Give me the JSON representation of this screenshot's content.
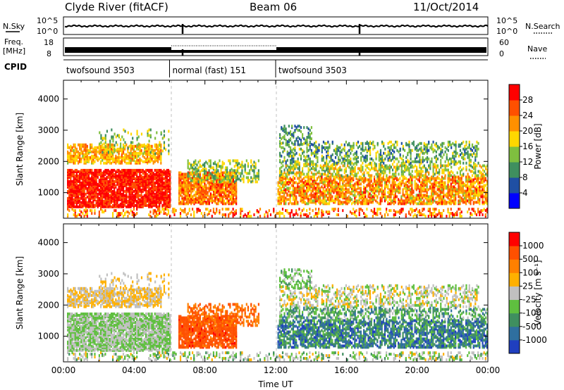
{
  "header": {
    "station": "Clyde River (fitACF)",
    "beam": "Beam 06",
    "date": "11/Oct/2014"
  },
  "noise_panel": {
    "left_label": "N.Sky",
    "right_label": "N.Search",
    "left_ticks": [
      "10^5",
      "10^0"
    ],
    "right_ticks": [
      "10^5",
      "10^0"
    ]
  },
  "freq_panel": {
    "left_label_line1": "Freq.",
    "left_label_line2": "[MHz]",
    "right_label": "Nave",
    "left_ticks": [
      "18",
      "8"
    ],
    "right_ticks": [
      "60",
      "0"
    ]
  },
  "cpid_panel": {
    "label": "CPID",
    "segments": [
      {
        "name": "twofsound 3503",
        "start": 0,
        "end": 6
      },
      {
        "name": "normal (fast) 151",
        "start": 6,
        "end": 12
      },
      {
        "name": "twofsound 3503",
        "start": 12,
        "end": 24
      }
    ]
  },
  "chart_data": [
    {
      "type": "heatmap",
      "parameter": "Power",
      "ylabel": "Slant Range [km]",
      "ylim": [
        180,
        4600
      ],
      "yticks": [
        "1000",
        "2000",
        "3000",
        "4000"
      ],
      "xlim": [
        0,
        24
      ],
      "colorbar_label": "Power [dB]",
      "colorbar_ticks": [
        "4",
        "8",
        "12",
        "16",
        "20",
        "24",
        "28"
      ],
      "colors": [
        "#0000ff",
        "#1f4fa3",
        "#3f8f5f",
        "#7fbf3f",
        "#ffd700",
        "#ff9000",
        "#ff5000",
        "#ff0000"
      ]
    },
    {
      "type": "heatmap",
      "parameter": "Velocity",
      "ylabel": "Slant Range [km]",
      "ylim": [
        180,
        4600
      ],
      "yticks": [
        "1000",
        "2000",
        "3000",
        "4000"
      ],
      "xlim": [
        0,
        24
      ],
      "xlabel": "Time UT",
      "xticks": [
        "00:00",
        "04:00",
        "08:00",
        "12:00",
        "16:00",
        "20:00",
        "00:00"
      ],
      "colorbar_label": "Velocity [m s⁻¹]",
      "colorbar_ticks": [
        "1000",
        "500",
        "100",
        "25",
        "-25",
        "-100",
        "-500",
        "-1000"
      ],
      "colors": [
        "#1f3fbf",
        "#2f6f9f",
        "#3f8f5f",
        "#5fbf3f",
        "#c0c0c0",
        "#ffb000",
        "#ff8000",
        "#ff5000",
        "#ff0000"
      ]
    }
  ]
}
